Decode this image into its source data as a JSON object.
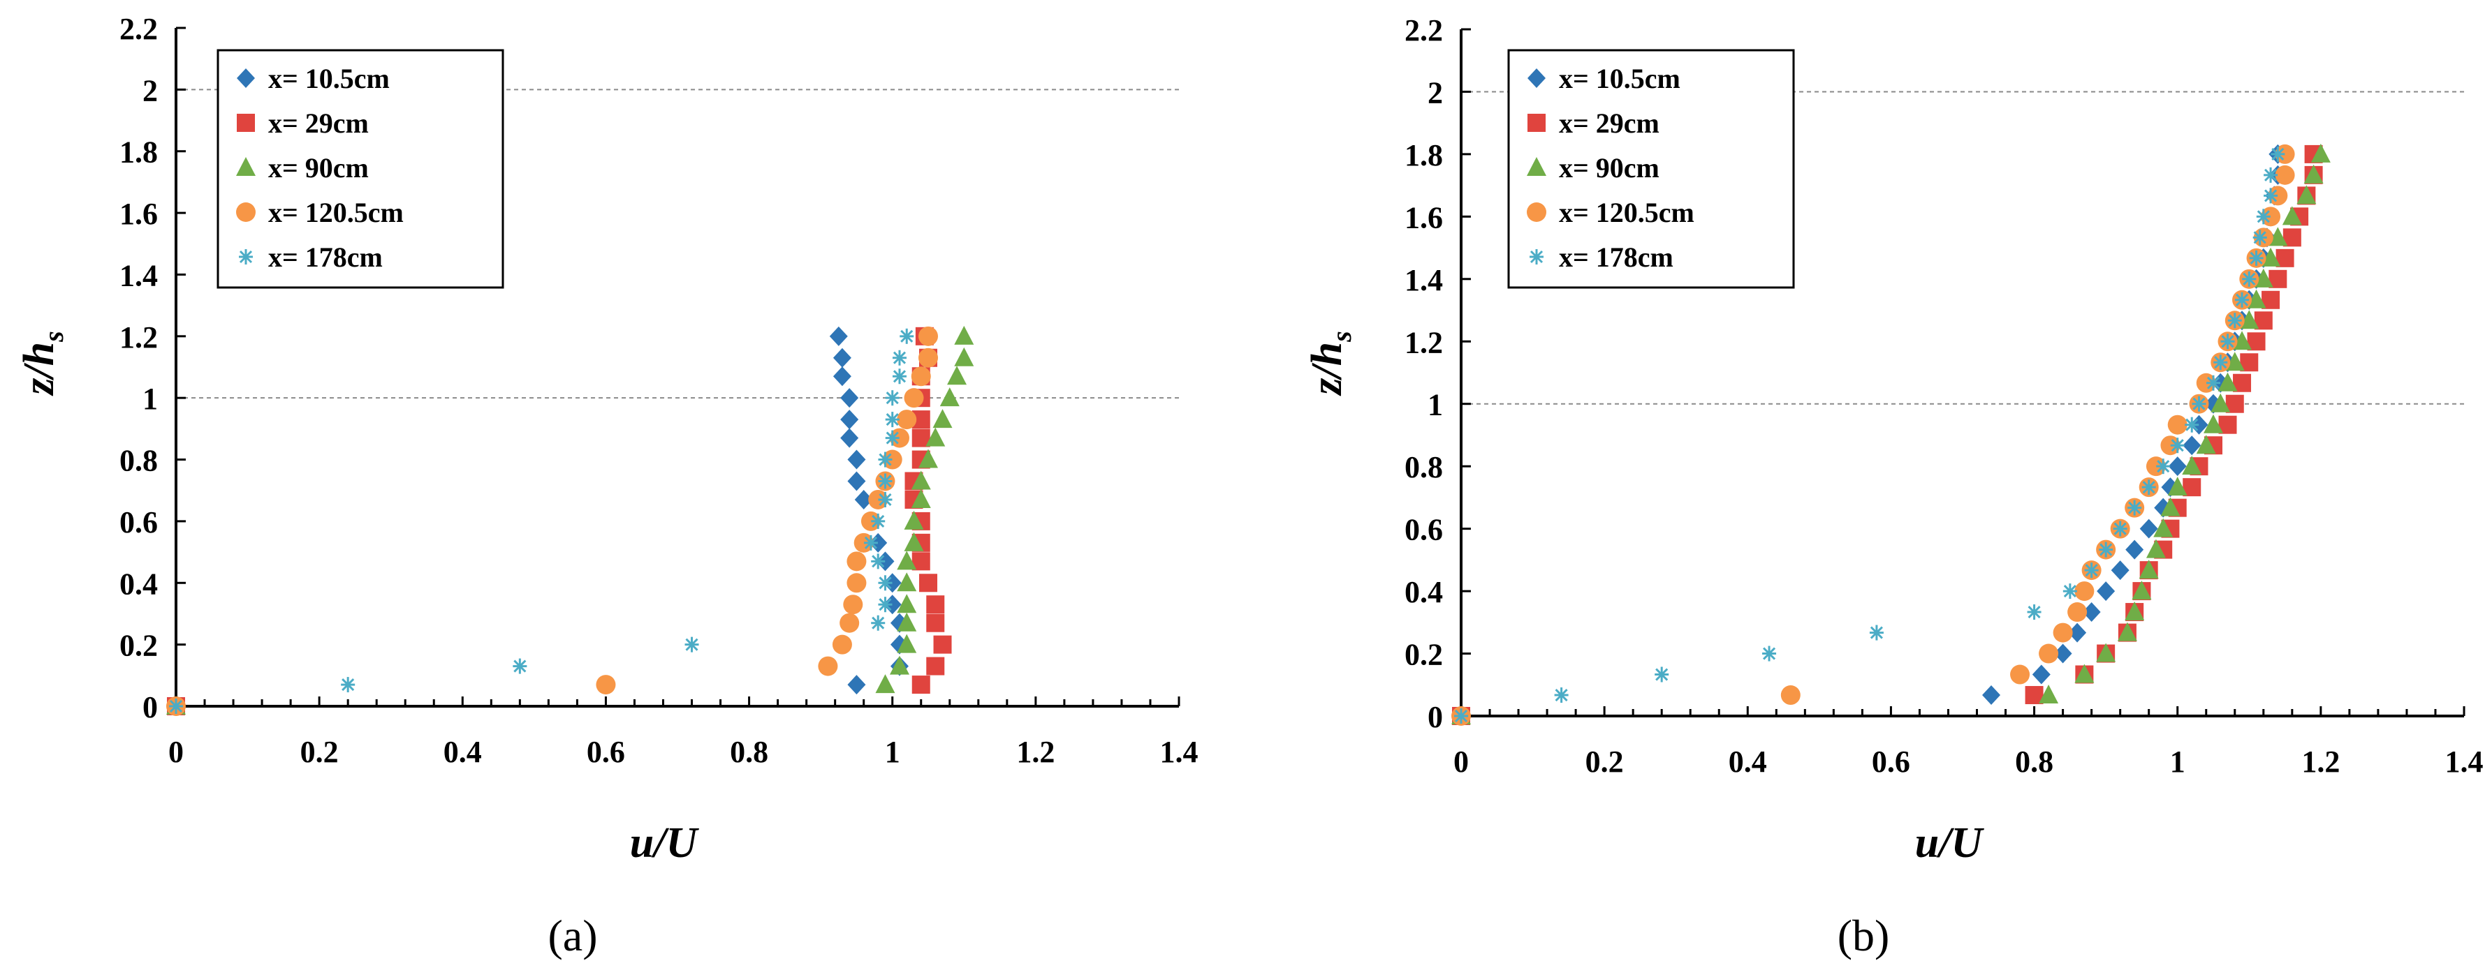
{
  "colors": {
    "x= 10.5cm": "#2E75B6",
    "x= 29cm": "#E0443E",
    "x= 90cm": "#70AD47",
    "x= 120.5cm": "#F79646",
    "x= 178cm": "#4BACC6"
  },
  "markers": {
    "x= 10.5cm": "diamond",
    "x= 29cm": "square",
    "x= 90cm": "triangle",
    "x= 120.5cm": "circle",
    "x= 178cm": "asterisk"
  },
  "chart_data": [
    {
      "type": "scatter",
      "panel_label": "(a)",
      "xlabel": "u/U",
      "ylabel_main": "z/h",
      "ylabel_sub": "s",
      "xlim": [
        0,
        1.4
      ],
      "ylim": [
        0,
        2.2
      ],
      "xticks": [
        "0",
        "0.2",
        "0.4",
        "0.6",
        "0.8",
        "1",
        "1.2",
        "1.4"
      ],
      "yticks": [
        "0",
        "0.2",
        "0.4",
        "0.6",
        "0.8",
        "1",
        "1.2",
        "1.4",
        "1.6",
        "1.8",
        "2",
        "2.2"
      ],
      "reference_lines": [
        1,
        2
      ],
      "legend_position": "top-left",
      "series": [
        {
          "name": "x= 10.5cm",
          "x": [
            0,
            0.95,
            1.01,
            1.01,
            1.01,
            1.0,
            1.0,
            0.99,
            0.98,
            0.97,
            0.96,
            0.95,
            0.95,
            0.94,
            0.94,
            0.94,
            0.93,
            0.93,
            0.925
          ],
          "y": [
            0,
            0.07,
            0.13,
            0.2,
            0.27,
            0.33,
            0.4,
            0.47,
            0.53,
            0.6,
            0.67,
            0.73,
            0.8,
            0.87,
            0.93,
            1.0,
            1.07,
            1.13,
            1.2
          ]
        },
        {
          "name": "x= 29cm",
          "x": [
            0,
            1.04,
            1.06,
            1.07,
            1.06,
            1.06,
            1.05,
            1.04,
            1.04,
            1.04,
            1.03,
            1.03,
            1.04,
            1.04,
            1.04,
            1.04,
            1.04,
            1.05,
            1.045
          ],
          "y": [
            0,
            0.07,
            0.13,
            0.2,
            0.27,
            0.33,
            0.4,
            0.47,
            0.53,
            0.6,
            0.67,
            0.73,
            0.8,
            0.87,
            0.93,
            1.0,
            1.07,
            1.13,
            1.2
          ]
        },
        {
          "name": "x= 90cm",
          "x": [
            0,
            0.99,
            1.01,
            1.02,
            1.02,
            1.02,
            1.02,
            1.02,
            1.03,
            1.03,
            1.04,
            1.04,
            1.05,
            1.06,
            1.07,
            1.08,
            1.09,
            1.1,
            1.1
          ],
          "y": [
            0,
            0.07,
            0.13,
            0.2,
            0.27,
            0.33,
            0.4,
            0.47,
            0.53,
            0.6,
            0.67,
            0.73,
            0.8,
            0.87,
            0.93,
            1.0,
            1.07,
            1.13,
            1.2
          ]
        },
        {
          "name": "x= 120.5cm",
          "x": [
            0,
            0.6,
            0.91,
            0.93,
            0.94,
            0.945,
            0.95,
            0.95,
            0.96,
            0.97,
            0.98,
            0.99,
            1.0,
            1.01,
            1.02,
            1.03,
            1.04,
            1.05,
            1.05
          ],
          "y": [
            0,
            0.07,
            0.13,
            0.2,
            0.27,
            0.33,
            0.4,
            0.47,
            0.53,
            0.6,
            0.67,
            0.73,
            0.8,
            0.87,
            0.93,
            1.0,
            1.07,
            1.13,
            1.2
          ]
        },
        {
          "name": "x= 178cm",
          "x": [
            0,
            0.24,
            0.48,
            0.72,
            0.98,
            0.99,
            0.99,
            0.98,
            0.97,
            0.98,
            0.99,
            0.99,
            0.99,
            1.0,
            1.0,
            1.0,
            1.01,
            1.01,
            1.02
          ],
          "y": [
            0,
            0.07,
            0.13,
            0.2,
            0.27,
            0.33,
            0.4,
            0.47,
            0.53,
            0.6,
            0.67,
            0.73,
            0.8,
            0.87,
            0.93,
            1.0,
            1.07,
            1.13,
            1.2
          ]
        }
      ]
    },
    {
      "type": "scatter",
      "panel_label": "(b)",
      "xlabel": "u/U",
      "ylabel_main": "z/h",
      "ylabel_sub": "s",
      "xlim": [
        0,
        1.4
      ],
      "ylim": [
        0,
        2.2
      ],
      "xticks": [
        "0",
        "0.2",
        "0.4",
        "0.6",
        "0.8",
        "1",
        "1.2",
        "1.4"
      ],
      "yticks": [
        "0",
        "0.2",
        "0.4",
        "0.6",
        "0.8",
        "1",
        "1.2",
        "1.4",
        "1.6",
        "1.8",
        "2",
        "2.2"
      ],
      "reference_lines": [
        1,
        2
      ],
      "legend_position": "top-left",
      "series": [
        {
          "name": "x= 10.5cm",
          "x": [
            0,
            0.74,
            0.81,
            0.84,
            0.86,
            0.88,
            0.9,
            0.92,
            0.94,
            0.96,
            0.98,
            0.99,
            1.0,
            1.02,
            1.03,
            1.05,
            1.06,
            1.07,
            1.08,
            1.09,
            1.1,
            1.11,
            1.12,
            1.125,
            1.13,
            1.135,
            1.14,
            1.14
          ],
          "y": [
            0,
            0.067,
            0.133,
            0.2,
            0.267,
            0.333,
            0.4,
            0.467,
            0.533,
            0.6,
            0.667,
            0.733,
            0.8,
            0.867,
            0.933,
            1.0,
            1.067,
            1.133,
            1.2,
            1.267,
            1.333,
            1.4,
            1.467,
            1.533,
            1.6,
            1.667,
            1.733,
            1.8
          ]
        },
        {
          "name": "x= 29cm",
          "x": [
            0,
            0.8,
            0.87,
            0.9,
            0.93,
            0.94,
            0.95,
            0.96,
            0.98,
            0.99,
            1.0,
            1.02,
            1.03,
            1.05,
            1.07,
            1.08,
            1.09,
            1.1,
            1.11,
            1.12,
            1.13,
            1.14,
            1.15,
            1.16,
            1.17,
            1.18,
            1.19,
            1.19
          ],
          "y": [
            0,
            0.067,
            0.133,
            0.2,
            0.267,
            0.333,
            0.4,
            0.467,
            0.533,
            0.6,
            0.667,
            0.733,
            0.8,
            0.867,
            0.933,
            1.0,
            1.067,
            1.133,
            1.2,
            1.267,
            1.333,
            1.4,
            1.467,
            1.533,
            1.6,
            1.667,
            1.733,
            1.8
          ]
        },
        {
          "name": "x= 90cm",
          "x": [
            0,
            0.82,
            0.87,
            0.9,
            0.93,
            0.94,
            0.95,
            0.96,
            0.97,
            0.98,
            0.99,
            1.0,
            1.02,
            1.04,
            1.05,
            1.06,
            1.07,
            1.08,
            1.09,
            1.1,
            1.11,
            1.12,
            1.13,
            1.14,
            1.16,
            1.18,
            1.19,
            1.2
          ],
          "y": [
            0,
            0.067,
            0.133,
            0.2,
            0.267,
            0.333,
            0.4,
            0.467,
            0.533,
            0.6,
            0.667,
            0.733,
            0.8,
            0.867,
            0.933,
            1.0,
            1.067,
            1.133,
            1.2,
            1.267,
            1.333,
            1.4,
            1.467,
            1.533,
            1.6,
            1.667,
            1.733,
            1.8
          ]
        },
        {
          "name": "x= 120.5cm",
          "x": [
            0,
            0.46,
            0.78,
            0.82,
            0.84,
            0.86,
            0.87,
            0.88,
            0.9,
            0.92,
            0.94,
            0.96,
            0.97,
            0.99,
            1.0,
            1.03,
            1.04,
            1.06,
            1.07,
            1.08,
            1.09,
            1.1,
            1.11,
            1.12,
            1.13,
            1.14,
            1.15,
            1.15
          ],
          "y": [
            0,
            0.067,
            0.133,
            0.2,
            0.267,
            0.333,
            0.4,
            0.467,
            0.533,
            0.6,
            0.667,
            0.733,
            0.8,
            0.867,
            0.933,
            1.0,
            1.067,
            1.133,
            1.2,
            1.267,
            1.333,
            1.4,
            1.467,
            1.533,
            1.6,
            1.667,
            1.733,
            1.8
          ]
        },
        {
          "name": "x= 178cm",
          "x": [
            0,
            0.14,
            0.28,
            0.43,
            0.58,
            0.8,
            0.85,
            0.88,
            0.9,
            0.92,
            0.94,
            0.96,
            0.98,
            1.0,
            1.02,
            1.03,
            1.05,
            1.06,
            1.07,
            1.08,
            1.09,
            1.1,
            1.11,
            1.115,
            1.12,
            1.13,
            1.13,
            1.14
          ],
          "y": [
            0,
            0.067,
            0.133,
            0.2,
            0.267,
            0.333,
            0.4,
            0.467,
            0.533,
            0.6,
            0.667,
            0.733,
            0.8,
            0.867,
            0.933,
            1.0,
            1.067,
            1.133,
            1.2,
            1.267,
            1.333,
            1.4,
            1.467,
            1.533,
            1.6,
            1.667,
            1.733,
            1.8
          ]
        }
      ]
    }
  ]
}
